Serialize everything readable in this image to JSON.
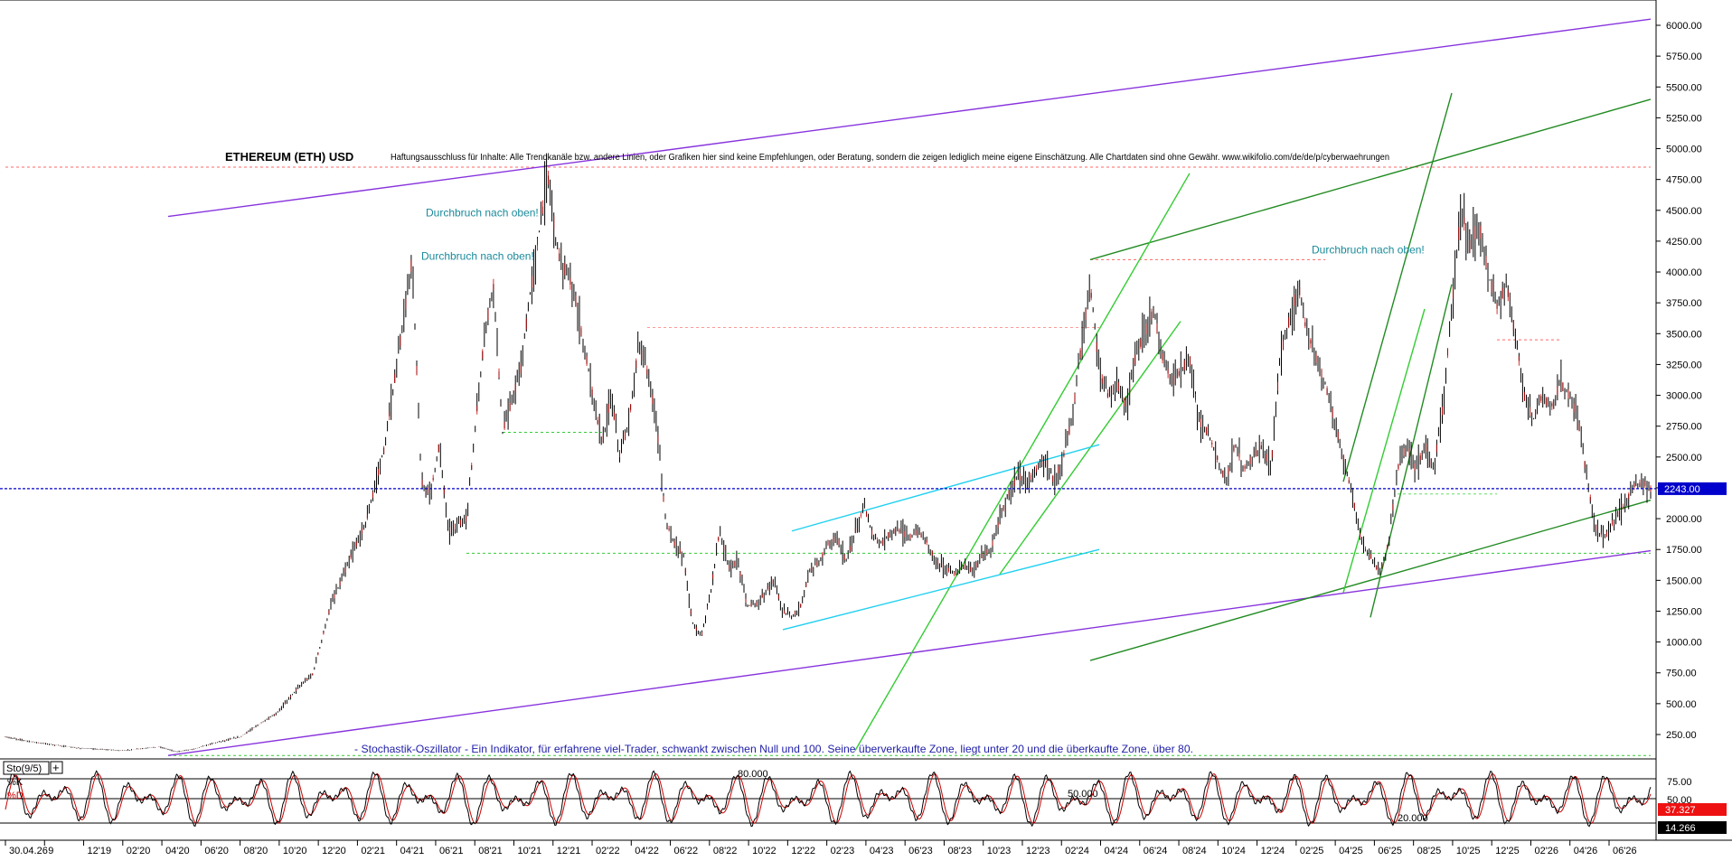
{
  "chart_data": [
    {
      "type": "candlestick",
      "title": "ETHEREUM (ETH) USD",
      "disclaimer": "Haftungsausschluss für Inhalte: Alle Trendkanäle bzw. andere Linien, oder Grafiken hier sind keine Empfehlungen, oder Beratung, sondern die zeigen lediglich meine eigene Einschätzung. Alle Chartdaten sind ohne Gewähr. www.wikifolio.com/de/de/p/cyberwaehrungen",
      "x_ticks": [
        "30.04.26",
        "9",
        "12'19",
        "02'20",
        "04'20",
        "06'20",
        "08'20",
        "10'20",
        "12'20",
        "02'21",
        "04'21",
        "06'21",
        "08'21",
        "10'21",
        "12'21",
        "02'22",
        "04'22",
        "06'22",
        "08'22",
        "10'22",
        "12'22",
        "02'23",
        "04'23",
        "06'23",
        "08'23",
        "10'23",
        "12'23",
        "02'24",
        "04'24",
        "06'24",
        "08'24",
        "10'24",
        "12'24",
        "02'25",
        "04'25",
        "06'25",
        "08'25",
        "10'25",
        "12'25",
        "02'26",
        "04'26",
        "06'26"
      ],
      "y_ticks": [
        "250.00",
        "500.00",
        "750.00",
        "1000.00",
        "1250.00",
        "1500.00",
        "1750.00",
        "2000.00",
        "2250.00",
        "2500.00",
        "2750.00",
        "3000.00",
        "3250.00",
        "3500.00",
        "3750.00",
        "4000.00",
        "4250.00",
        "4500.00",
        "4750.00",
        "5000.00",
        "5250.00",
        "5500.00",
        "5750.00",
        "6000.00"
      ],
      "ylim": [
        0,
        6100
      ],
      "last_price": "2243.00",
      "price_path": [
        [
          0,
          230
        ],
        [
          3,
          190
        ],
        [
          8,
          140
        ],
        [
          13,
          120
        ],
        [
          17,
          150
        ],
        [
          19,
          110
        ],
        [
          21,
          135
        ],
        [
          23,
          180
        ],
        [
          26,
          230
        ],
        [
          28,
          330
        ],
        [
          30,
          420
        ],
        [
          32,
          600
        ],
        [
          34,
          740
        ],
        [
          36,
          1300
        ],
        [
          38,
          1650
        ],
        [
          40,
          2000
        ],
        [
          42,
          2600
        ],
        [
          44,
          3600
        ],
        [
          45,
          4100
        ],
        [
          46,
          2300
        ],
        [
          47,
          2200
        ],
        [
          48,
          2600
        ],
        [
          49,
          1900
        ],
        [
          51,
          2000
        ],
        [
          53,
          3500
        ],
        [
          54,
          3900
        ],
        [
          55,
          2700
        ],
        [
          57,
          3200
        ],
        [
          58,
          3800
        ],
        [
          60,
          4800
        ],
        [
          61,
          4200
        ],
        [
          62,
          4000
        ],
        [
          63,
          3800
        ],
        [
          65,
          3000
        ],
        [
          66,
          2600
        ],
        [
          67,
          3000
        ],
        [
          68,
          2500
        ],
        [
          69,
          2800
        ],
        [
          70,
          3400
        ],
        [
          71,
          3200
        ],
        [
          72,
          2800
        ],
        [
          73,
          2000
        ],
        [
          74,
          1800
        ],
        [
          75,
          1700
        ],
        [
          76,
          1150
        ],
        [
          77,
          1050
        ],
        [
          78,
          1400
        ],
        [
          79,
          1900
        ],
        [
          80,
          1600
        ],
        [
          81,
          1650
        ],
        [
          82,
          1300
        ],
        [
          83,
          1300
        ],
        [
          85,
          1500
        ],
        [
          86,
          1250
        ],
        [
          87,
          1200
        ],
        [
          88,
          1300
        ],
        [
          89,
          1580
        ],
        [
          90,
          1650
        ],
        [
          91,
          1800
        ],
        [
          92,
          1850
        ],
        [
          93,
          1650
        ],
        [
          94,
          1900
        ],
        [
          95,
          2100
        ],
        [
          96,
          1850
        ],
        [
          97,
          1800
        ],
        [
          98,
          1900
        ],
        [
          99,
          1900
        ],
        [
          100,
          1850
        ],
        [
          101,
          1900
        ],
        [
          102,
          1800
        ],
        [
          103,
          1650
        ],
        [
          104,
          1600
        ],
        [
          105,
          1550
        ],
        [
          106,
          1620
        ],
        [
          107,
          1580
        ],
        [
          108,
          1700
        ],
        [
          109,
          1750
        ],
        [
          110,
          2000
        ],
        [
          111,
          2200
        ],
        [
          112,
          2350
        ],
        [
          113,
          2300
        ],
        [
          114,
          2400
        ],
        [
          115,
          2500
        ],
        [
          116,
          2300
        ],
        [
          117,
          2500
        ],
        [
          118,
          2800
        ],
        [
          119,
          3400
        ],
        [
          120,
          3900
        ],
        [
          121,
          3200
        ],
        [
          122,
          3000
        ],
        [
          123,
          3100
        ],
        [
          124,
          2900
        ],
        [
          125,
          3300
        ],
        [
          126,
          3500
        ],
        [
          127,
          3700
        ],
        [
          128,
          3300
        ],
        [
          129,
          3100
        ],
        [
          130,
          3200
        ],
        [
          131,
          3300
        ],
        [
          132,
          2800
        ],
        [
          133,
          2700
        ],
        [
          134,
          2500
        ],
        [
          135,
          2300
        ],
        [
          136,
          2600
        ],
        [
          137,
          2400
        ],
        [
          138,
          2500
        ],
        [
          139,
          2600
        ],
        [
          140,
          2400
        ],
        [
          141,
          3300
        ],
        [
          142,
          3600
        ],
        [
          143,
          3900
        ],
        [
          144,
          3500
        ],
        [
          145,
          3300
        ],
        [
          146,
          3100
        ],
        [
          147,
          2800
        ],
        [
          148,
          2500
        ],
        [
          149,
          2200
        ],
        [
          150,
          1800
        ],
        [
          151,
          1700
        ],
        [
          152,
          1550
        ],
        [
          153,
          1800
        ],
        [
          154,
          2400
        ],
        [
          155,
          2600
        ],
        [
          156,
          2400
        ],
        [
          157,
          2600
        ],
        [
          158,
          2400
        ],
        [
          159,
          2900
        ],
        [
          160,
          3700
        ],
        [
          161,
          4500
        ],
        [
          162,
          4200
        ],
        [
          163,
          4400
        ],
        [
          164,
          4000
        ],
        [
          165,
          3700
        ],
        [
          166,
          3900
        ],
        [
          167,
          3500
        ],
        [
          168,
          3000
        ],
        [
          169,
          2800
        ],
        [
          170,
          3000
        ],
        [
          171,
          2900
        ],
        [
          172,
          3100
        ],
        [
          173,
          3000
        ],
        [
          174,
          2800
        ],
        [
          175,
          2300
        ],
        [
          176,
          1900
        ],
        [
          177,
          1850
        ],
        [
          178,
          2000
        ],
        [
          179,
          2100
        ],
        [
          180,
          2250
        ],
        [
          181,
          2300
        ],
        [
          182,
          2243
        ]
      ],
      "indicator": {
        "name": "Sto(9/5)",
        "k_label": "%K",
        "d_label": "%D",
        "levels": [
          "80.000",
          "50.000",
          "20.000"
        ],
        "y_ticks": [
          "75.00",
          "50.00"
        ],
        "k_value": "37.327",
        "d_value": "14.266",
        "description": "- Stochastik-Oszillator - Ein Indikator, für erfahrene viel-Trader, schwankt zwischen Null und 100. Seine überverkaufte Zone, liegt unter 20 und die überkaufte Zone, über 80."
      },
      "annotations": [
        {
          "text": "Durchbruch nach oben!",
          "price": 4450,
          "t": 46.5
        },
        {
          "text": "Durchbruch nach oben!",
          "price": 4100,
          "t": 46
        },
        {
          "text": "Durchbruch nach oben!",
          "price": 4150,
          "t": 144.5
        }
      ],
      "trend_lines": [
        {
          "color": "#8833dd",
          "t1": 18,
          "p1": 80,
          "t2": 182,
          "p2": 1740
        },
        {
          "color": "#8833dd",
          "t1": 18,
          "p1": 4450,
          "t2": 182,
          "p2": 6050
        },
        {
          "color": "#228b22",
          "t1": 120,
          "p1": 4100,
          "t2": 182,
          "p2": 5400
        },
        {
          "color": "#228b22",
          "t1": 120,
          "p1": 850,
          "t2": 182,
          "p2": 2150
        },
        {
          "color": "#33cc33",
          "t1": 94,
          "p1": 120,
          "t2": 131,
          "p2": 4800
        },
        {
          "color": "#33cc33",
          "t1": 110,
          "p1": 1550,
          "t2": 130,
          "p2": 3600
        },
        {
          "color": "#22d0f0",
          "t1": 87,
          "p1": 1900,
          "t2": 121,
          "p2": 2600
        },
        {
          "color": "#22d0f0",
          "t1": 86,
          "p1": 1100,
          "t2": 121,
          "p2": 1750
        },
        {
          "color": "#228b22",
          "t1": 148,
          "p1": 2300,
          "t2": 160,
          "p2": 5450
        },
        {
          "color": "#228b22",
          "t1": 151,
          "p1": 1200,
          "t2": 160,
          "p2": 3900
        },
        {
          "color": "#33cc33",
          "t1": 148,
          "p1": 1400,
          "t2": 157,
          "p2": 3700
        }
      ],
      "dashed_levels": [
        {
          "color": "#ff6666",
          "price": 4850,
          "t1": 0,
          "t2": 182
        },
        {
          "color": "#ff6666",
          "price": 4100,
          "t1": 120,
          "t2": 146
        },
        {
          "color": "#ff9999",
          "price": 3550,
          "t1": 71,
          "t2": 121
        },
        {
          "color": "#ff6666",
          "price": 3450,
          "t1": 165,
          "t2": 172
        },
        {
          "color": "#33cc33",
          "price": 1720,
          "t1": 51,
          "t2": 182
        },
        {
          "color": "#33cc33",
          "price": 2700,
          "t1": 55,
          "t2": 66
        },
        {
          "color": "#66dd66",
          "price": 2200,
          "t1": 154,
          "t2": 165
        },
        {
          "color": "#33cc33",
          "price": 80,
          "t1": 18,
          "t2": 182
        }
      ]
    }
  ]
}
